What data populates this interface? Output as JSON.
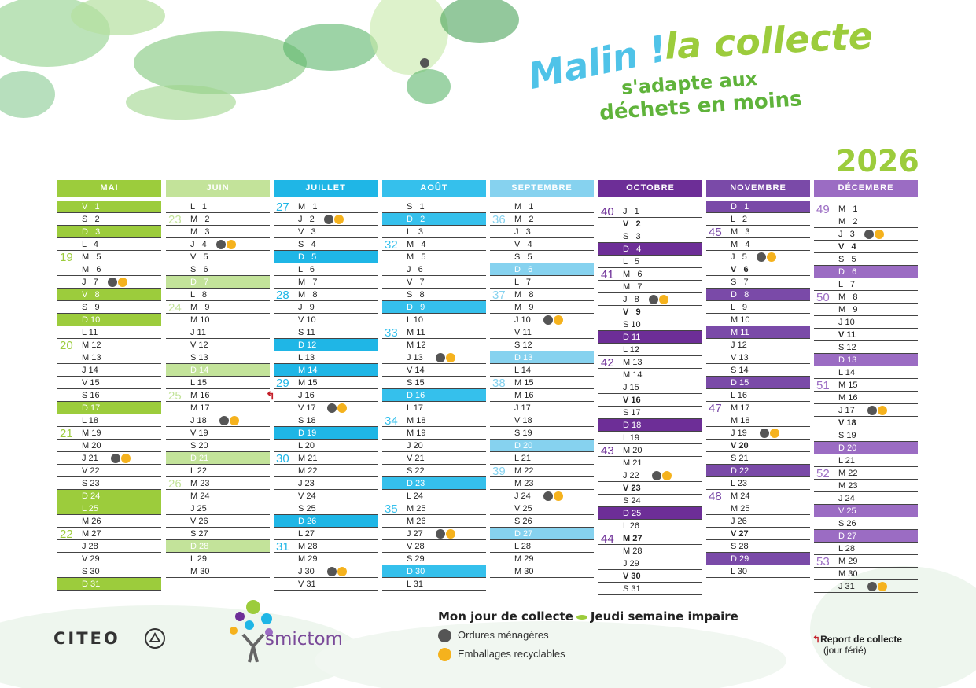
{
  "header": {
    "malin": "Malin !",
    "la_collecte": "la collecte",
    "line2": "s'adapte aux",
    "line3": "déchets en moins",
    "year": "2026"
  },
  "colors": {
    "green": "#9ccc3c",
    "light_green": "#c3e39a",
    "cyan": "#1fb6e6",
    "light_cyan": "#86d2ef",
    "purple": "#6d2e97",
    "light_purple": "#9b6cc3",
    "grey_dot": "#555555",
    "orange_dot": "#f5b21d"
  },
  "months": [
    {
      "name": "MAI",
      "color": "#9ccc3c",
      "hl": "#9ccc3c",
      "first_offset": 0,
      "days_count": 31,
      "weekday": [
        "V",
        "S",
        "D",
        "L",
        "M",
        "M",
        "J"
      ],
      "start_wd": 4,
      "highlighted": [
        1,
        3,
        8,
        10,
        17,
        24,
        25,
        31
      ],
      "collection": [
        7,
        21
      ],
      "bold": [],
      "weeks": [
        {
          "n": "19",
          "at": 5
        },
        {
          "n": "20",
          "at": 12
        },
        {
          "n": "21",
          "at": 19
        },
        {
          "n": "22",
          "at": 27
        }
      ],
      "report": []
    },
    {
      "name": "JUIN",
      "color": "#c3e39a",
      "hl": "#c3e39a",
      "first_offset": 0,
      "days_count": 30,
      "start_wd": 0,
      "highlighted": [
        7,
        14,
        21,
        28
      ],
      "collection": [
        4,
        18
      ],
      "bold": [],
      "weeks": [
        {
          "n": "23",
          "at": 2
        },
        {
          "n": "24",
          "at": 9
        },
        {
          "n": "25",
          "at": 16
        },
        {
          "n": "26",
          "at": 23
        }
      ],
      "report": []
    },
    {
      "name": "JUILLET",
      "color": "#1fb6e6",
      "hl": "#1fb6e6",
      "first_offset": 0,
      "days_count": 31,
      "start_wd": 2,
      "highlighted": [
        5,
        12,
        14,
        19,
        26
      ],
      "collection": [
        2,
        17,
        30
      ],
      "bold": [],
      "weeks": [
        {
          "n": "27",
          "at": 1
        },
        {
          "n": "28",
          "at": 8
        },
        {
          "n": "29",
          "at": 15
        },
        {
          "n": "30",
          "at": 21
        },
        {
          "n": "31",
          "at": 28
        }
      ],
      "report": [
        16
      ]
    },
    {
      "name": "AOÛT",
      "color": "#35c0ec",
      "hl": "#35c0ec",
      "first_offset": 0,
      "days_count": 31,
      "start_wd": 5,
      "highlighted": [
        2,
        9,
        16,
        23,
        30
      ],
      "collection": [
        13,
        27
      ],
      "bold": [],
      "weeks": [
        {
          "n": "32",
          "at": 4
        },
        {
          "n": "33",
          "at": 11
        },
        {
          "n": "34",
          "at": 18
        },
        {
          "n": "35",
          "at": 25
        }
      ],
      "report": []
    },
    {
      "name": "SEPTEMBRE",
      "color": "#86d2ef",
      "hl": "#86d2ef",
      "first_offset": 0,
      "days_count": 30,
      "start_wd": 1,
      "highlighted": [
        6,
        13,
        20,
        27
      ],
      "collection": [
        10,
        24
      ],
      "bold": [],
      "weeks": [
        {
          "n": "36",
          "at": 2
        },
        {
          "n": "37",
          "at": 8
        },
        {
          "n": "38",
          "at": 15
        },
        {
          "n": "39",
          "at": 22
        }
      ],
      "report": []
    },
    {
      "name": "OCTOBRE",
      "color": "#6d2e97",
      "hl": "#6d2e97",
      "first_offset": 0.4,
      "days_count": 31,
      "start_wd": 3,
      "highlighted": [
        4,
        11,
        18,
        25
      ],
      "collection": [
        8,
        22
      ],
      "bold": [
        2,
        9,
        16,
        23,
        27,
        30
      ],
      "weeks": [
        {
          "n": "40",
          "at": 1
        },
        {
          "n": "41",
          "at": 6
        },
        {
          "n": "42",
          "at": 13
        },
        {
          "n": "43",
          "at": 20
        },
        {
          "n": "44",
          "at": 27
        }
      ],
      "report": []
    },
    {
      "name": "NOVEMBRE",
      "color": "#7a4aa8",
      "hl": "#7a4aa8",
      "first_offset": 0,
      "days_count": 30,
      "start_wd": 6,
      "highlighted": [
        1,
        8,
        11,
        15,
        22,
        29
      ],
      "collection": [
        5,
        19
      ],
      "bold": [
        6,
        20,
        27
      ],
      "weeks": [
        {
          "n": "45",
          "at": 3
        },
        {
          "n": "46",
          "at": 11
        },
        {
          "n": "47",
          "at": 17
        },
        {
          "n": "48",
          "at": 24
        }
      ],
      "report": []
    },
    {
      "name": "DÉCEMBRE",
      "color": "#9b6cc3",
      "hl": "#9b6cc3",
      "first_offset": 0.2,
      "days_count": 31,
      "start_wd": 1,
      "highlighted": [
        6,
        13,
        20,
        25,
        27
      ],
      "collection": [
        3,
        17,
        31
      ],
      "bold": [
        4,
        11,
        18
      ],
      "weeks": [
        {
          "n": "49",
          "at": 1
        },
        {
          "n": "50",
          "at": 8
        },
        {
          "n": "51",
          "at": 15
        },
        {
          "n": "52",
          "at": 22
        },
        {
          "n": "53",
          "at": 29
        }
      ],
      "report": []
    }
  ],
  "weekday_letters": [
    "L",
    "M",
    "M",
    "J",
    "V",
    "S",
    "D"
  ],
  "legend": {
    "title_left": "Mon jour de collecte",
    "title_right": "Jeudi semaine impaire",
    "item1": "Ordures ménagères",
    "item2": "Emballages recyclables"
  },
  "report": {
    "title": "Report de collecte",
    "subtitle": "(jour férié)"
  },
  "logos": {
    "citeo": "CITEO",
    "smictom": "smictom"
  }
}
